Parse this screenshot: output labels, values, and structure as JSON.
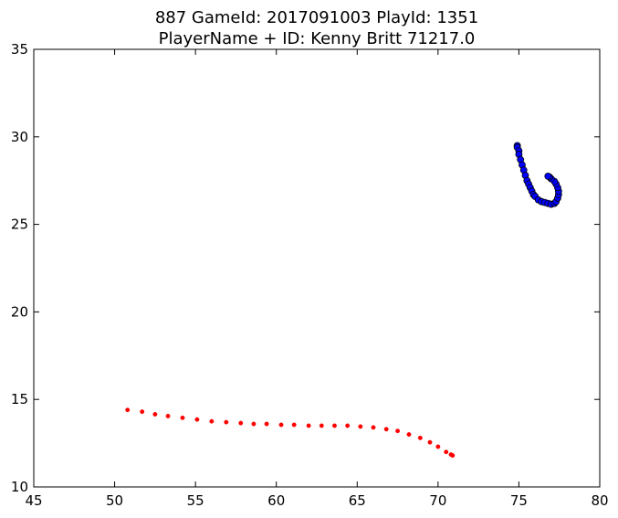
{
  "chart_data": {
    "type": "scatter",
    "title_line1": "887 GameId: 2017091003 PlayId: 1351",
    "title_line2": "PlayerName + ID: Kenny Britt 71217.0",
    "xlabel": "",
    "ylabel": "",
    "xlim": [
      45,
      80
    ],
    "ylim": [
      10,
      35
    ],
    "x_ticks": [
      45,
      50,
      55,
      60,
      65,
      70,
      75,
      80
    ],
    "y_ticks": [
      10,
      15,
      20,
      25,
      30,
      35
    ],
    "grid": false,
    "series": [
      {
        "color": "#0000ff",
        "marker": "circle-large",
        "points": [
          [
            74.9,
            29.5
          ],
          [
            74.9,
            29.4
          ],
          [
            75.0,
            29.2
          ],
          [
            75.0,
            29.0
          ],
          [
            75.1,
            28.7
          ],
          [
            75.2,
            28.4
          ],
          [
            75.3,
            28.1
          ],
          [
            75.4,
            27.8
          ],
          [
            75.5,
            27.5
          ],
          [
            75.6,
            27.3
          ],
          [
            75.7,
            27.1
          ],
          [
            75.8,
            26.9
          ],
          [
            75.9,
            26.7
          ],
          [
            76.0,
            26.6
          ],
          [
            76.2,
            26.4
          ],
          [
            76.4,
            26.3
          ],
          [
            76.6,
            26.25
          ],
          [
            76.8,
            26.2
          ],
          [
            77.0,
            26.15
          ],
          [
            77.2,
            26.2
          ],
          [
            77.3,
            26.3
          ],
          [
            77.4,
            26.5
          ],
          [
            77.45,
            26.7
          ],
          [
            77.45,
            26.9
          ],
          [
            77.4,
            27.1
          ],
          [
            77.3,
            27.3
          ],
          [
            77.2,
            27.45
          ],
          [
            77.0,
            27.6
          ],
          [
            76.9,
            27.7
          ],
          [
            76.8,
            27.75
          ]
        ]
      },
      {
        "color": "#ff0000",
        "marker": "circle-small",
        "points": [
          [
            50.8,
            14.4
          ],
          [
            51.7,
            14.3
          ],
          [
            52.5,
            14.15
          ],
          [
            53.3,
            14.05
          ],
          [
            54.2,
            13.95
          ],
          [
            55.1,
            13.85
          ],
          [
            56.0,
            13.75
          ],
          [
            56.9,
            13.7
          ],
          [
            57.8,
            13.65
          ],
          [
            58.6,
            13.6
          ],
          [
            59.4,
            13.6
          ],
          [
            60.3,
            13.55
          ],
          [
            61.1,
            13.55
          ],
          [
            62.0,
            13.5
          ],
          [
            62.8,
            13.5
          ],
          [
            63.6,
            13.5
          ],
          [
            64.4,
            13.5
          ],
          [
            65.2,
            13.45
          ],
          [
            66.0,
            13.4
          ],
          [
            66.8,
            13.3
          ],
          [
            67.5,
            13.2
          ],
          [
            68.2,
            13.0
          ],
          [
            68.9,
            12.8
          ],
          [
            69.5,
            12.55
          ],
          [
            70.0,
            12.3
          ],
          [
            70.5,
            12.0
          ],
          [
            70.8,
            11.85
          ],
          [
            70.9,
            11.8
          ]
        ]
      }
    ]
  }
}
